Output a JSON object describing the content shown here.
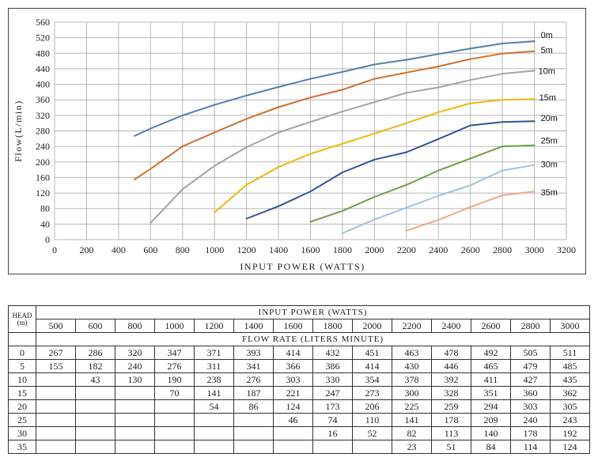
{
  "chart_data": {
    "type": "line",
    "xlabel": "INPUT POWER (WATTS)",
    "ylabel": "Flow(L/min)",
    "xlim": [
      0,
      3200
    ],
    "ylim": [
      0,
      560
    ],
    "xticks": [
      0,
      200,
      400,
      600,
      800,
      1000,
      1200,
      1400,
      1600,
      1800,
      2000,
      2200,
      2400,
      2600,
      2800,
      3000,
      3200
    ],
    "yticks": [
      0,
      40,
      80,
      120,
      160,
      200,
      240,
      280,
      320,
      360,
      400,
      440,
      480,
      520,
      560
    ],
    "grid": true,
    "series": [
      {
        "name": "0m",
        "color": "#4f81b4",
        "x": [
          500,
          600,
          800,
          1000,
          1200,
          1400,
          1600,
          1800,
          2000,
          2200,
          2400,
          2600,
          2800,
          3000
        ],
        "y": [
          267,
          286,
          320,
          347,
          371,
          393,
          414,
          432,
          451,
          463,
          478,
          492,
          505,
          511
        ]
      },
      {
        "name": "5m",
        "color": "#d2702e",
        "x": [
          500,
          600,
          800,
          1000,
          1200,
          1400,
          1600,
          1800,
          2000,
          2200,
          2400,
          2600,
          2800,
          3000
        ],
        "y": [
          155,
          182,
          240,
          276,
          311,
          341,
          366,
          386,
          414,
          430,
          446,
          465,
          479,
          485
        ]
      },
      {
        "name": "10m",
        "color": "#a5a5a5",
        "x": [
          600,
          800,
          1000,
          1200,
          1400,
          1600,
          1800,
          2000,
          2200,
          2400,
          2600,
          2800,
          3000
        ],
        "y": [
          43,
          130,
          190,
          238,
          276,
          303,
          330,
          354,
          378,
          392,
          411,
          427,
          435
        ]
      },
      {
        "name": "15m",
        "color": "#f1b90c",
        "x": [
          1000,
          1200,
          1400,
          1600,
          1800,
          2000,
          2200,
          2400,
          2600,
          2800,
          3000
        ],
        "y": [
          70,
          141,
          187,
          221,
          247,
          273,
          300,
          328,
          351,
          360,
          362
        ]
      },
      {
        "name": "20m",
        "color": "#2e569a",
        "x": [
          1200,
          1400,
          1600,
          1800,
          2000,
          2200,
          2400,
          2600,
          2800,
          3000
        ],
        "y": [
          54,
          86,
          124,
          173,
          206,
          225,
          259,
          294,
          303,
          305
        ]
      },
      {
        "name": "25m",
        "color": "#6ba246",
        "x": [
          1600,
          1800,
          2000,
          2200,
          2400,
          2600,
          2800,
          3000
        ],
        "y": [
          46,
          74,
          110,
          141,
          178,
          209,
          240,
          243
        ]
      },
      {
        "name": "30m",
        "color": "#9fc3e5",
        "x": [
          1800,
          2000,
          2200,
          2400,
          2600,
          2800,
          3000
        ],
        "y": [
          16,
          52,
          82,
          113,
          140,
          178,
          192
        ]
      },
      {
        "name": "35m",
        "color": "#f1a98a",
        "x": [
          2200,
          2400,
          2600,
          2800,
          3000
        ],
        "y": [
          23,
          51,
          84,
          114,
          124
        ]
      }
    ]
  },
  "table": {
    "head_label": "HEAD",
    "head_unit": "(m)",
    "power_title": "INPUT POWER (WATTS)",
    "flow_title": "FLOW RATE (LITERS MINUTE)",
    "columns": [
      "500",
      "600",
      "800",
      "1000",
      "1200",
      "1400",
      "1600",
      "1800",
      "2000",
      "2200",
      "2400",
      "2600",
      "2800",
      "3000"
    ],
    "rows": [
      {
        "head": "0",
        "values": [
          "267",
          "286",
          "320",
          "347",
          "371",
          "393",
          "414",
          "432",
          "451",
          "463",
          "478",
          "492",
          "505",
          "511"
        ]
      },
      {
        "head": "5",
        "values": [
          "155",
          "182",
          "240",
          "276",
          "311",
          "341",
          "366",
          "386",
          "414",
          "430",
          "446",
          "465",
          "479",
          "485"
        ]
      },
      {
        "head": "10",
        "values": [
          "",
          "43",
          "130",
          "190",
          "238",
          "276",
          "303",
          "330",
          "354",
          "378",
          "392",
          "411",
          "427",
          "435"
        ]
      },
      {
        "head": "15",
        "values": [
          "",
          "",
          "",
          "70",
          "141",
          "187",
          "221",
          "247",
          "273",
          "300",
          "328",
          "351",
          "360",
          "362"
        ]
      },
      {
        "head": "20",
        "values": [
          "",
          "",
          "",
          "",
          "54",
          "86",
          "124",
          "173",
          "206",
          "225",
          "259",
          "294",
          "303",
          "305"
        ]
      },
      {
        "head": "25",
        "values": [
          "",
          "",
          "",
          "",
          "",
          "",
          "46",
          "74",
          "110",
          "141",
          "178",
          "209",
          "240",
          "243"
        ]
      },
      {
        "head": "30",
        "values": [
          "",
          "",
          "",
          "",
          "",
          "",
          "",
          "16",
          "52",
          "82",
          "113",
          "140",
          "178",
          "192"
        ]
      },
      {
        "head": "35",
        "values": [
          "",
          "",
          "",
          "",
          "",
          "",
          "",
          "",
          "",
          "23",
          "51",
          "84",
          "114",
          "124"
        ]
      }
    ]
  }
}
